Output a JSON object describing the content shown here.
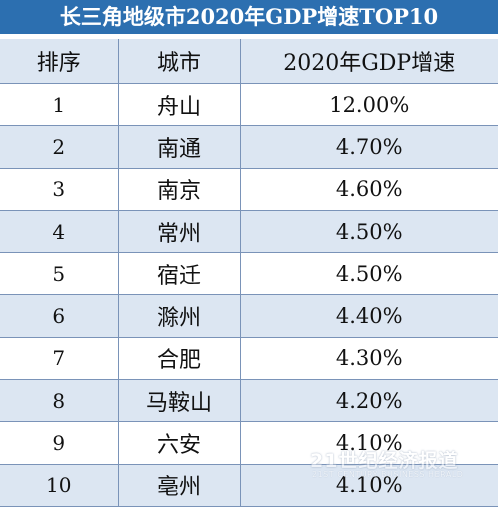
{
  "title": "长三角地级市2020年GDP增速TOP10",
  "headers": [
    "排序",
    "城市",
    "2020年GDP增速"
  ],
  "rows": [
    {
      "rank": "1",
      "city": "舟山",
      "growth": "12.00%"
    },
    {
      "rank": "2",
      "city": "南通",
      "growth": "4.70%"
    },
    {
      "rank": "3",
      "city": "南京",
      "growth": "4.60%"
    },
    {
      "rank": "4",
      "city": "常州",
      "growth": "4.50%"
    },
    {
      "rank": "5",
      "city": "宿迁",
      "growth": "4.50%"
    },
    {
      "rank": "6",
      "city": "滁州",
      "growth": "4.40%"
    },
    {
      "rank": "7",
      "city": "合肥",
      "growth": "4.30%"
    },
    {
      "rank": "8",
      "city": "马鞍山",
      "growth": "4.20%"
    },
    {
      "rank": "9",
      "city": "六安",
      "growth": "4.10%"
    },
    {
      "rank": "10",
      "city": "亳州",
      "growth": "4.10%"
    }
  ],
  "watermark": {
    "logo_text": "21世纪经济报道",
    "logo_subtext": "21ST CENTURY BUSINESS HERALD"
  },
  "colors": {
    "title_bg": "#2c6fb0",
    "title_fg": "#ffffff",
    "band": "#dce6f2",
    "grid": "#7a93b8"
  }
}
